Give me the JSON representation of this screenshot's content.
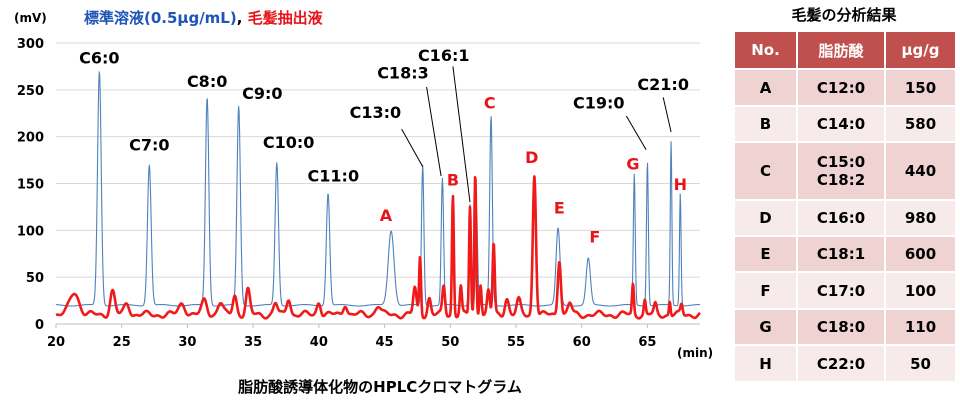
{
  "chart_data": {
    "type": "line",
    "title_parts": [
      {
        "text": "標準溶液(0.5μg/mL)",
        "color": "#1f55b8"
      },
      {
        "text": ", ",
        "color": "#000000"
      },
      {
        "text": "毛髪抽出液",
        "color": "#e8141a"
      }
    ],
    "subtitle": "脂肪酸誘導体化物のHPLCクロマトグラム",
    "ylabel": "(mV)",
    "xlabel": "(min)",
    "xlim": [
      20,
      69
    ],
    "ylim": [
      0,
      300
    ],
    "xticks": [
      20,
      25,
      30,
      35,
      40,
      45,
      50,
      55,
      60,
      65
    ],
    "yticks": [
      0,
      50,
      100,
      150,
      200,
      250,
      300
    ],
    "series": [
      {
        "name": "標準溶液(0.5μg/mL)",
        "color": "#4f81bd",
        "baseline": 20,
        "peaks": [
          {
            "x": 23.3,
            "y": 270,
            "w": 0.14
          },
          {
            "x": 27.1,
            "y": 170,
            "w": 0.14
          },
          {
            "x": 31.5,
            "y": 242,
            "w": 0.13
          },
          {
            "x": 33.9,
            "y": 232,
            "w": 0.13
          },
          {
            "x": 36.8,
            "y": 172,
            "w": 0.13
          },
          {
            "x": 40.7,
            "y": 140,
            "w": 0.13
          },
          {
            "x": 45.5,
            "y": 100,
            "w": 0.22
          },
          {
            "x": 47.9,
            "y": 170,
            "w": 0.09
          },
          {
            "x": 49.4,
            "y": 155,
            "w": 0.09
          },
          {
            "x": 51.5,
            "y": 128,
            "w": 0.08
          },
          {
            "x": 52.0,
            "y": 120,
            "w": 0.08
          },
          {
            "x": 53.1,
            "y": 222,
            "w": 0.1
          },
          {
            "x": 58.2,
            "y": 102,
            "w": 0.15
          },
          {
            "x": 60.5,
            "y": 70,
            "w": 0.16
          },
          {
            "x": 64.0,
            "y": 160,
            "w": 0.07
          },
          {
            "x": 65.0,
            "y": 174,
            "w": 0.07
          },
          {
            "x": 66.8,
            "y": 195,
            "w": 0.06
          },
          {
            "x": 67.5,
            "y": 140,
            "w": 0.06
          }
        ]
      },
      {
        "name": "毛髪抽出液",
        "color": "#f01a1a",
        "baseline": 10,
        "peaks": [
          {
            "x": 21.4,
            "y": 34,
            "w": 0.35
          },
          {
            "x": 24.3,
            "y": 35,
            "w": 0.18
          },
          {
            "x": 25.4,
            "y": 22,
            "w": 0.2
          },
          {
            "x": 29.6,
            "y": 22,
            "w": 0.25
          },
          {
            "x": 31.3,
            "y": 25,
            "w": 0.2
          },
          {
            "x": 32.5,
            "y": 23,
            "w": 0.2
          },
          {
            "x": 33.6,
            "y": 31,
            "w": 0.15
          },
          {
            "x": 34.6,
            "y": 36,
            "w": 0.15
          },
          {
            "x": 36.7,
            "y": 22,
            "w": 0.15
          },
          {
            "x": 37.7,
            "y": 28,
            "w": 0.15
          },
          {
            "x": 40.0,
            "y": 24,
            "w": 0.15
          },
          {
            "x": 42.0,
            "y": 22,
            "w": 0.15
          },
          {
            "x": 44.5,
            "y": 20,
            "w": 0.2
          },
          {
            "x": 47.3,
            "y": 38,
            "w": 0.12
          },
          {
            "x": 47.7,
            "y": 72,
            "w": 0.07
          },
          {
            "x": 48.4,
            "y": 28,
            "w": 0.12
          },
          {
            "x": 49.5,
            "y": 40,
            "w": 0.1
          },
          {
            "x": 50.2,
            "y": 138,
            "w": 0.07
          },
          {
            "x": 50.8,
            "y": 40,
            "w": 0.08
          },
          {
            "x": 51.5,
            "y": 125,
            "w": 0.07
          },
          {
            "x": 51.9,
            "y": 160,
            "w": 0.07
          },
          {
            "x": 52.3,
            "y": 45,
            "w": 0.08
          },
          {
            "x": 52.9,
            "y": 35,
            "w": 0.1
          },
          {
            "x": 53.3,
            "y": 85,
            "w": 0.08
          },
          {
            "x": 54.3,
            "y": 28,
            "w": 0.15
          },
          {
            "x": 55.2,
            "y": 25,
            "w": 0.15
          },
          {
            "x": 56.4,
            "y": 160,
            "w": 0.12
          },
          {
            "x": 58.3,
            "y": 70,
            "w": 0.12
          },
          {
            "x": 59.1,
            "y": 22,
            "w": 0.15
          },
          {
            "x": 63.9,
            "y": 42,
            "w": 0.07
          },
          {
            "x": 64.8,
            "y": 25,
            "w": 0.07
          },
          {
            "x": 65.6,
            "y": 20,
            "w": 0.1
          },
          {
            "x": 66.7,
            "y": 25,
            "w": 0.06
          },
          {
            "x": 67.6,
            "y": 20,
            "w": 0.08
          }
        ]
      }
    ],
    "annotations_black": [
      {
        "label": "C6:0",
        "x": 23.3,
        "y": 278
      },
      {
        "label": "C7:0",
        "x": 27.1,
        "y": 185
      },
      {
        "label": "C8:0",
        "x": 31.5,
        "y": 253
      },
      {
        "label": "C9:0",
        "x": 35.7,
        "y": 240
      },
      {
        "label": "C10:0",
        "x": 37.7,
        "y": 188
      },
      {
        "label": "C11:0",
        "x": 41.1,
        "y": 152
      },
      {
        "label": "C13:0",
        "x": 44.3,
        "y": 220
      },
      {
        "label": "C18:3",
        "x": 46.4,
        "y": 262
      },
      {
        "label": "C16:1",
        "x": 49.5,
        "y": 281
      },
      {
        "label": "C19:0",
        "x": 61.3,
        "y": 230
      },
      {
        "label": "C21:0",
        "x": 66.2,
        "y": 250
      }
    ],
    "leaders": [
      {
        "x1": 46.3,
        "y1": 208,
        "x2": 47.9,
        "y2": 168
      },
      {
        "x1": 48.2,
        "y1": 253,
        "x2": 49.3,
        "y2": 158
      },
      {
        "x1": 50.2,
        "y1": 275,
        "x2": 51.5,
        "y2": 130
      },
      {
        "x1": 63.4,
        "y1": 222,
        "x2": 64.9,
        "y2": 186
      },
      {
        "x1": 66.2,
        "y1": 242,
        "x2": 66.8,
        "y2": 205
      }
    ],
    "annotations_red": [
      {
        "label": "A",
        "x": 45.1,
        "y": 110
      },
      {
        "label": "B",
        "x": 50.2,
        "y": 148
      },
      {
        "label": "C",
        "x": 53.0,
        "y": 230
      },
      {
        "label": "D",
        "x": 56.2,
        "y": 172
      },
      {
        "label": "E",
        "x": 58.3,
        "y": 118
      },
      {
        "label": "F",
        "x": 61.0,
        "y": 87
      },
      {
        "label": "G",
        "x": 63.9,
        "y": 165
      },
      {
        "label": "H",
        "x": 67.5,
        "y": 143
      }
    ]
  },
  "results": {
    "title": "毛髪の分析結果",
    "headers": [
      "No.",
      "脂肪酸",
      "μg/g"
    ],
    "rows": [
      {
        "no": "A",
        "acid": "C12:0",
        "value": "150"
      },
      {
        "no": "B",
        "acid": "C14:0",
        "value": "580"
      },
      {
        "no": "C",
        "acid": "C15:0\nC18:2",
        "value": "440"
      },
      {
        "no": "D",
        "acid": "C16:0",
        "value": "980"
      },
      {
        "no": "E",
        "acid": "C18:1",
        "value": "600"
      },
      {
        "no": "F",
        "acid": "C17:0",
        "value": "100"
      },
      {
        "no": "G",
        "acid": "C18:0",
        "value": "110"
      },
      {
        "no": "H",
        "acid": "C22:0",
        "value": "50"
      }
    ]
  }
}
